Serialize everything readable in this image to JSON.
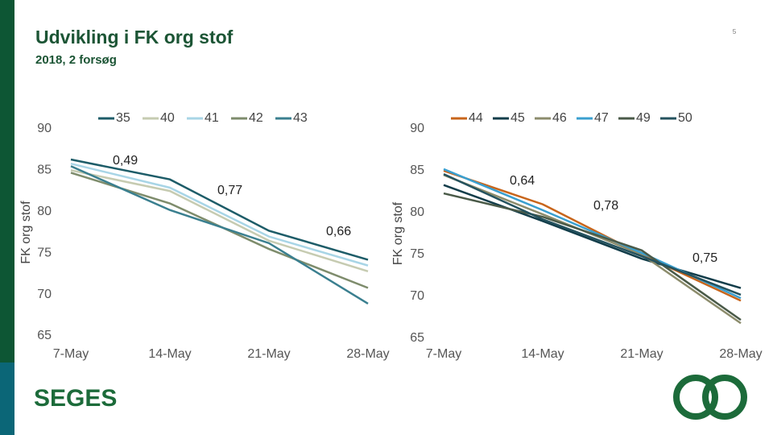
{
  "header": {
    "title": "Udvikling i FK org stof",
    "subtitle": "2018, 2 forsøg",
    "page_number": "5",
    "logo": "SEGES"
  },
  "chart_data": [
    {
      "type": "line",
      "y_label": "FK org stof",
      "categories": [
        "7-May",
        "14-May",
        "21-May",
        "28-May"
      ],
      "ylim": [
        65,
        90
      ],
      "yticks": [
        65,
        70,
        75,
        80,
        85,
        90
      ],
      "grid": false,
      "series": [
        {
          "name": "35",
          "color": "#1d5c68",
          "values": [
            86.3,
            83.9,
            77.7,
            74.2
          ]
        },
        {
          "name": "40",
          "color": "#c6cbb1",
          "values": [
            85,
            82.5,
            76.5,
            72.8
          ]
        },
        {
          "name": "41",
          "color": "#a8d5e6",
          "values": [
            85.8,
            82.9,
            77,
            73.5
          ]
        },
        {
          "name": "42",
          "color": "#7e8c6c",
          "values": [
            84.7,
            81,
            75.5,
            70.8
          ]
        },
        {
          "name": "43",
          "color": "#3a7f8f",
          "values": [
            85.5,
            80.2,
            76.2,
            68.9
          ]
        }
      ],
      "annotations": [
        "0,49",
        "0,77",
        "0,66"
      ]
    },
    {
      "type": "line",
      "y_label": "FK org stof",
      "categories": [
        "7-May",
        "14-May",
        "21-May",
        "28-May"
      ],
      "ylim": [
        65,
        90
      ],
      "yticks": [
        65,
        70,
        75,
        80,
        85,
        90
      ],
      "grid": false,
      "series": [
        {
          "name": "44",
          "color": "#c8651b",
          "values": [
            85,
            81,
            75,
            69.5
          ]
        },
        {
          "name": "45",
          "color": "#123d4a",
          "values": [
            83.3,
            79,
            74.5,
            71
          ]
        },
        {
          "name": "46",
          "color": "#8c8c6c",
          "values": [
            84.5,
            79.8,
            75,
            66.8
          ]
        },
        {
          "name": "47",
          "color": "#3a9fcf",
          "values": [
            85.2,
            80.3,
            75.2,
            69.8
          ]
        },
        {
          "name": "49",
          "color": "#4a5a48",
          "values": [
            82.3,
            79.5,
            75.5,
            67.2
          ]
        },
        {
          "name": "50",
          "color": "#24525e",
          "values": [
            84.6,
            79.2,
            74.8,
            70.2
          ]
        }
      ],
      "annotations": [
        "0,64",
        "0,78",
        "0,75"
      ]
    }
  ]
}
